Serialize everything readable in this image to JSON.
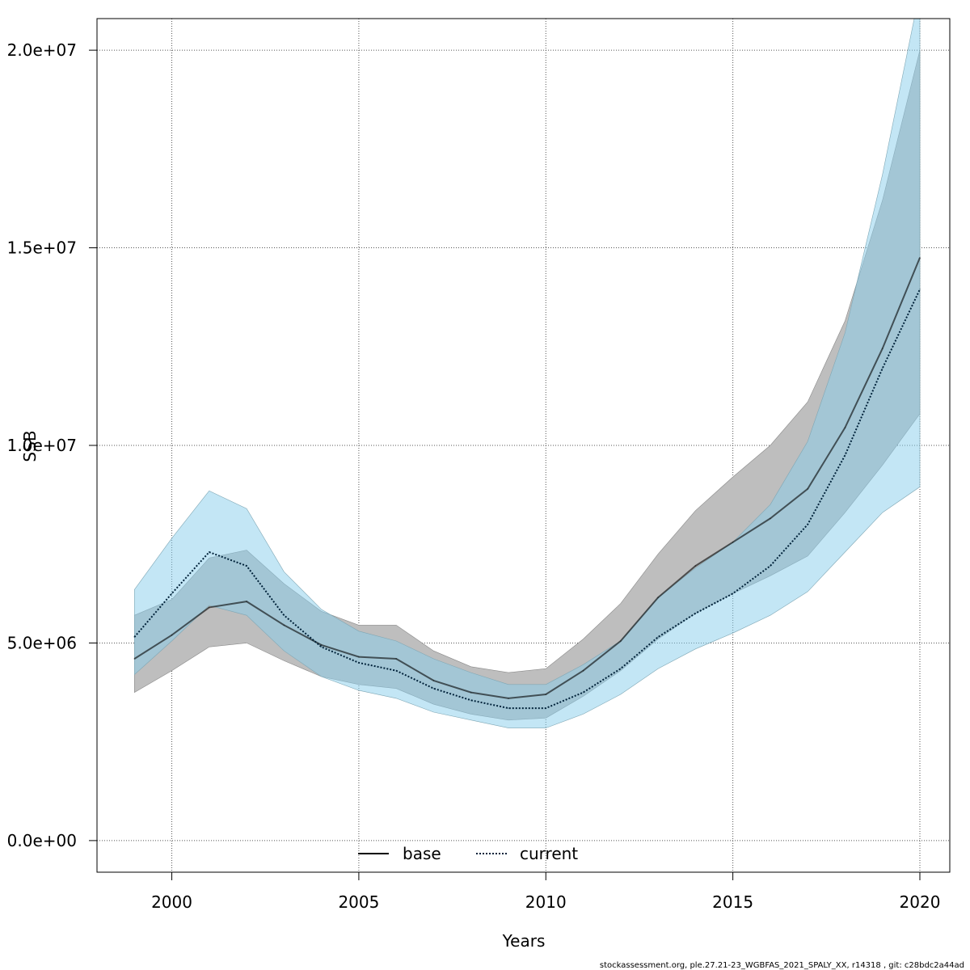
{
  "chart_data": {
    "type": "line",
    "title": "",
    "xlabel": "Years",
    "ylabel": "SSB",
    "xlim": [
      1998,
      2020.8
    ],
    "ylim": [
      -800000,
      20800000
    ],
    "x_ticks": [
      2000,
      2005,
      2010,
      2015,
      2020
    ],
    "x_tick_labels": [
      "2000",
      "2005",
      "2010",
      "2015",
      "2020"
    ],
    "y_ticks": [
      0,
      5000000,
      10000000,
      15000000,
      20000000
    ],
    "y_tick_labels": [
      "0.0e+00",
      "5.0e+06",
      "1.0e+07",
      "1.5e+07",
      "2.0e+07"
    ],
    "grid": true,
    "legend_position": "bottom-center",
    "x": [
      1999,
      2000,
      2001,
      2002,
      2003,
      2004,
      2005,
      2006,
      2007,
      2008,
      2009,
      2010,
      2011,
      2012,
      2013,
      2014,
      2015,
      2016,
      2017,
      2018,
      2019,
      2020
    ],
    "series": [
      {
        "name": "base",
        "line_style": "solid",
        "color": "#000000",
        "band_color": "#bebebe",
        "values": [
          4600000,
          5200000,
          5900000,
          6050000,
          5450000,
          4950000,
          4650000,
          4600000,
          4050000,
          3750000,
          3600000,
          3700000,
          4300000,
          5050000,
          6150000,
          6950000,
          7550000,
          8150000,
          8900000,
          10450000,
          12450000,
          14750000
        ],
        "lower": [
          3750000,
          4300000,
          4900000,
          5000000,
          4550000,
          4150000,
          3950000,
          3850000,
          3450000,
          3200000,
          3050000,
          3100000,
          3650000,
          4300000,
          5100000,
          5750000,
          6250000,
          6700000,
          7200000,
          8300000,
          9500000,
          10800000
        ],
        "upper": [
          5700000,
          6100000,
          7150000,
          7350000,
          6500000,
          5800000,
          5450000,
          5450000,
          4800000,
          4400000,
          4250000,
          4350000,
          5100000,
          6000000,
          7250000,
          8350000,
          9200000,
          10000000,
          11100000,
          13150000,
          16200000,
          20000000
        ]
      },
      {
        "name": "current",
        "line_style": "dotted",
        "color": "#00223a",
        "band_color": "#87ceeb",
        "values": [
          5150000,
          6250000,
          7300000,
          6950000,
          5700000,
          4900000,
          4500000,
          4300000,
          3850000,
          3550000,
          3350000,
          3350000,
          3750000,
          4350000,
          5150000,
          5750000,
          6250000,
          6950000,
          8000000,
          9750000,
          11950000,
          13950000
        ],
        "lower": [
          4200000,
          5050000,
          5950000,
          5700000,
          4800000,
          4150000,
          3800000,
          3600000,
          3250000,
          3050000,
          2850000,
          2850000,
          3200000,
          3700000,
          4350000,
          4850000,
          5250000,
          5700000,
          6300000,
          7300000,
          8300000,
          8950000
        ],
        "upper": [
          6350000,
          7650000,
          8850000,
          8400000,
          6800000,
          5850000,
          5300000,
          5050000,
          4600000,
          4250000,
          3950000,
          3950000,
          4450000,
          5050000,
          6150000,
          6900000,
          7550000,
          8500000,
          10100000,
          12850000,
          16850000,
          21500000
        ]
      }
    ]
  },
  "footnote": "stockassessment.org, ple.27.21-23_WGBFAS_2021_SPALY_XX, r14318 , git: c28bdc2a44ad"
}
